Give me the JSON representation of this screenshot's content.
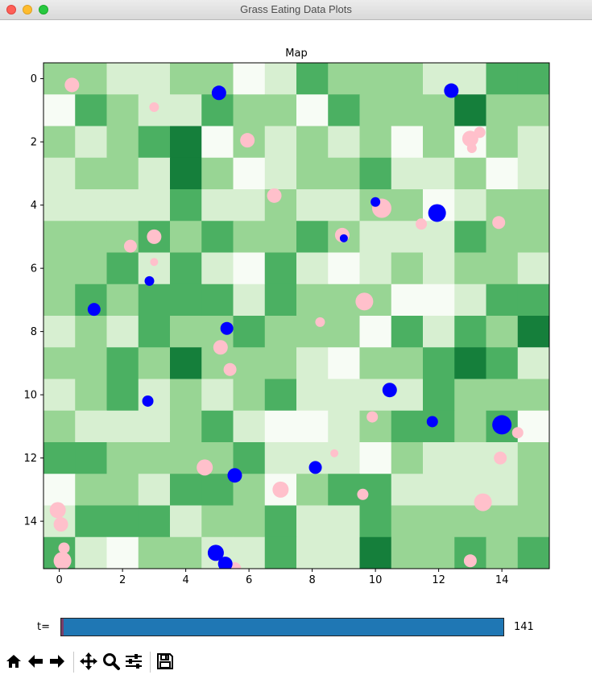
{
  "window": {
    "title": "Grass Eating Data Plots"
  },
  "chart_data": {
    "type": "heatmap",
    "title": "Map",
    "xlabel": "",
    "ylabel": "",
    "xlim": [
      -0.5,
      15.5
    ],
    "ylim": [
      15.5,
      -0.5
    ],
    "xticks": [
      0,
      2,
      4,
      6,
      8,
      10,
      12,
      14
    ],
    "yticks": [
      0,
      2,
      4,
      6,
      8,
      10,
      12,
      14
    ],
    "colormap": "Greens",
    "grid": false,
    "levels": {
      "colors": [
        "#f7fcf5",
        "#d7efd1",
        "#98d594",
        "#4bb062",
        "#157f3b"
      ]
    },
    "cells": [
      [
        2,
        2,
        1,
        1,
        2,
        2,
        0,
        1,
        3,
        2,
        2,
        2,
        1,
        1,
        3,
        3
      ],
      [
        0,
        3,
        2,
        1,
        1,
        3,
        2,
        2,
        0,
        3,
        2,
        2,
        2,
        4,
        2,
        2
      ],
      [
        2,
        1,
        2,
        3,
        4,
        0,
        2,
        1,
        2,
        1,
        2,
        0,
        2,
        0,
        2,
        1
      ],
      [
        1,
        2,
        2,
        1,
        4,
        2,
        0,
        1,
        2,
        2,
        3,
        1,
        1,
        2,
        0,
        1
      ],
      [
        1,
        1,
        1,
        1,
        3,
        1,
        1,
        2,
        1,
        1,
        2,
        2,
        0,
        1,
        2,
        2
      ],
      [
        2,
        2,
        2,
        3,
        2,
        3,
        2,
        2,
        3,
        2,
        1,
        1,
        1,
        3,
        2,
        2
      ],
      [
        2,
        2,
        3,
        1,
        3,
        1,
        0,
        3,
        1,
        0,
        1,
        2,
        1,
        2,
        2,
        1
      ],
      [
        2,
        3,
        2,
        3,
        3,
        3,
        1,
        3,
        2,
        2,
        2,
        0,
        0,
        1,
        3,
        3
      ],
      [
        1,
        2,
        1,
        3,
        2,
        2,
        3,
        2,
        2,
        2,
        0,
        3,
        1,
        3,
        2,
        4
      ],
      [
        2,
        2,
        3,
        2,
        4,
        2,
        2,
        2,
        1,
        0,
        2,
        2,
        3,
        4,
        3,
        1
      ],
      [
        1,
        2,
        3,
        1,
        2,
        1,
        2,
        3,
        1,
        1,
        1,
        1,
        3,
        2,
        2,
        2
      ],
      [
        2,
        1,
        1,
        1,
        2,
        3,
        1,
        0,
        0,
        1,
        2,
        3,
        3,
        2,
        3,
        0
      ],
      [
        3,
        3,
        2,
        2,
        2,
        2,
        3,
        1,
        1,
        1,
        0,
        2,
        1,
        1,
        1,
        2
      ],
      [
        0,
        2,
        2,
        1,
        3,
        3,
        2,
        0,
        2,
        3,
        3,
        1,
        1,
        1,
        1,
        2
      ],
      [
        1,
        3,
        3,
        3,
        1,
        2,
        2,
        3,
        1,
        1,
        3,
        2,
        2,
        2,
        2,
        2
      ],
      [
        3,
        1,
        0,
        2,
        2,
        1,
        1,
        3,
        1,
        1,
        4,
        2,
        2,
        3,
        2,
        3
      ]
    ],
    "series": [
      {
        "marker_color": "#ffc0cb",
        "points": [
          {
            "x": 0.4,
            "y": 0.2,
            "s": 9
          },
          {
            "x": 3.0,
            "y": 0.9,
            "s": 6
          },
          {
            "x": 5.95,
            "y": 1.95,
            "s": 9
          },
          {
            "x": 13.0,
            "y": 1.9,
            "s": 10
          },
          {
            "x": 13.3,
            "y": 1.7,
            "s": 7
          },
          {
            "x": 13.05,
            "y": 2.2,
            "s": 6
          },
          {
            "x": 6.8,
            "y": 3.7,
            "s": 9
          },
          {
            "x": 10.2,
            "y": 4.1,
            "s": 12
          },
          {
            "x": 11.45,
            "y": 4.6,
            "s": 7
          },
          {
            "x": 13.9,
            "y": 4.55,
            "s": 8
          },
          {
            "x": 2.25,
            "y": 5.3,
            "s": 8
          },
          {
            "x": 3.0,
            "y": 5.0,
            "s": 9
          },
          {
            "x": 3.0,
            "y": 5.8,
            "s": 5
          },
          {
            "x": 8.95,
            "y": 4.95,
            "s": 9
          },
          {
            "x": 9.65,
            "y": 7.05,
            "s": 11
          },
          {
            "x": 8.25,
            "y": 7.7,
            "s": 6
          },
          {
            "x": 5.1,
            "y": 8.5,
            "s": 9
          },
          {
            "x": 5.4,
            "y": 9.2,
            "s": 8
          },
          {
            "x": 9.9,
            "y": 10.7,
            "s": 7
          },
          {
            "x": 14.5,
            "y": 11.2,
            "s": 7
          },
          {
            "x": 8.7,
            "y": 11.85,
            "s": 5
          },
          {
            "x": 13.95,
            "y": 12.0,
            "s": 8
          },
          {
            "x": 4.6,
            "y": 12.3,
            "s": 10
          },
          {
            "x": 7.0,
            "y": 13.0,
            "s": 10
          },
          {
            "x": 9.6,
            "y": 13.15,
            "s": 7
          },
          {
            "x": 13.4,
            "y": 13.4,
            "s": 11
          },
          {
            "x": -0.05,
            "y": 13.65,
            "s": 10
          },
          {
            "x": 0.05,
            "y": 14.1,
            "s": 9
          },
          {
            "x": 0.15,
            "y": 14.85,
            "s": 7
          },
          {
            "x": 0.1,
            "y": 15.25,
            "s": 11
          },
          {
            "x": 13.0,
            "y": 15.25,
            "s": 8
          },
          {
            "x": 5.55,
            "y": 15.5,
            "s": 8
          }
        ]
      },
      {
        "marker_color": "#0000ff",
        "points": [
          {
            "x": 5.05,
            "y": 0.45,
            "s": 9
          },
          {
            "x": 12.4,
            "y": 0.38,
            "s": 9
          },
          {
            "x": 10.0,
            "y": 3.9,
            "s": 6
          },
          {
            "x": 11.95,
            "y": 4.25,
            "s": 11
          },
          {
            "x": 9.0,
            "y": 5.05,
            "s": 5
          },
          {
            "x": 2.85,
            "y": 6.4,
            "s": 6
          },
          {
            "x": 1.1,
            "y": 7.3,
            "s": 8
          },
          {
            "x": 5.3,
            "y": 7.9,
            "s": 8
          },
          {
            "x": 2.8,
            "y": 10.2,
            "s": 7
          },
          {
            "x": 10.45,
            "y": 9.85,
            "s": 9
          },
          {
            "x": 11.8,
            "y": 10.85,
            "s": 7
          },
          {
            "x": 14.0,
            "y": 10.95,
            "s": 12
          },
          {
            "x": 8.1,
            "y": 12.3,
            "s": 8
          },
          {
            "x": 5.55,
            "y": 12.55,
            "s": 9
          },
          {
            "x": 4.95,
            "y": 15.0,
            "s": 10
          },
          {
            "x": 5.25,
            "y": 15.35,
            "s": 9
          }
        ]
      }
    ]
  },
  "slider": {
    "label": "t=",
    "value": "141",
    "fraction": 1.0
  },
  "toolbar": {
    "buttons": [
      {
        "icon": "home-icon"
      },
      {
        "icon": "back-icon"
      },
      {
        "icon": "forward-icon"
      },
      {
        "icon": "pan-icon"
      },
      {
        "icon": "zoom-icon"
      },
      {
        "icon": "configure-subplots-icon"
      },
      {
        "icon": "save-icon"
      }
    ]
  }
}
